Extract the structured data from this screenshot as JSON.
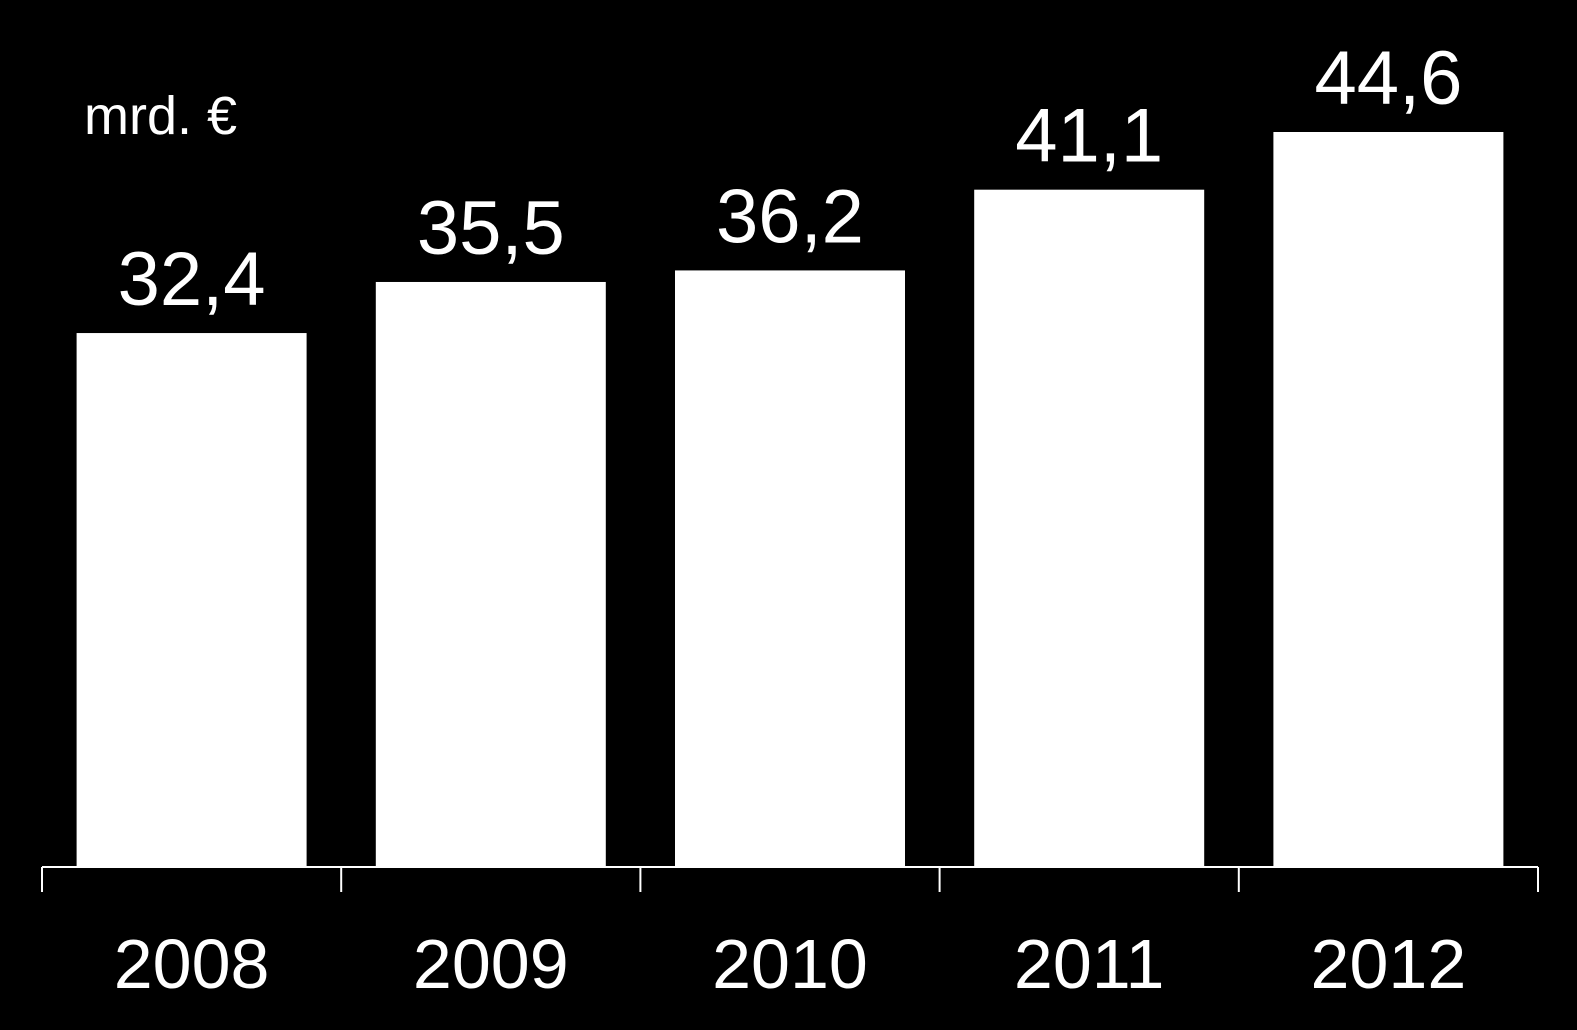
{
  "chart_data": {
    "type": "bar",
    "title": "",
    "unit_label": "mrd. €",
    "xlabel": "",
    "ylabel": "",
    "categories": [
      "2008",
      "2009",
      "2010",
      "2011",
      "2012"
    ],
    "values": [
      32.4,
      35.5,
      36.2,
      41.1,
      44.6
    ],
    "value_labels": [
      "32,4",
      "35,5",
      "36,2",
      "41,1",
      "44,6"
    ],
    "ylim": [
      0,
      44.6
    ],
    "grid": false,
    "legend": "none",
    "colors": {
      "background": "#000000",
      "bar": "#ffffff",
      "axis": "#ffffff",
      "text": "#ffffff"
    }
  }
}
